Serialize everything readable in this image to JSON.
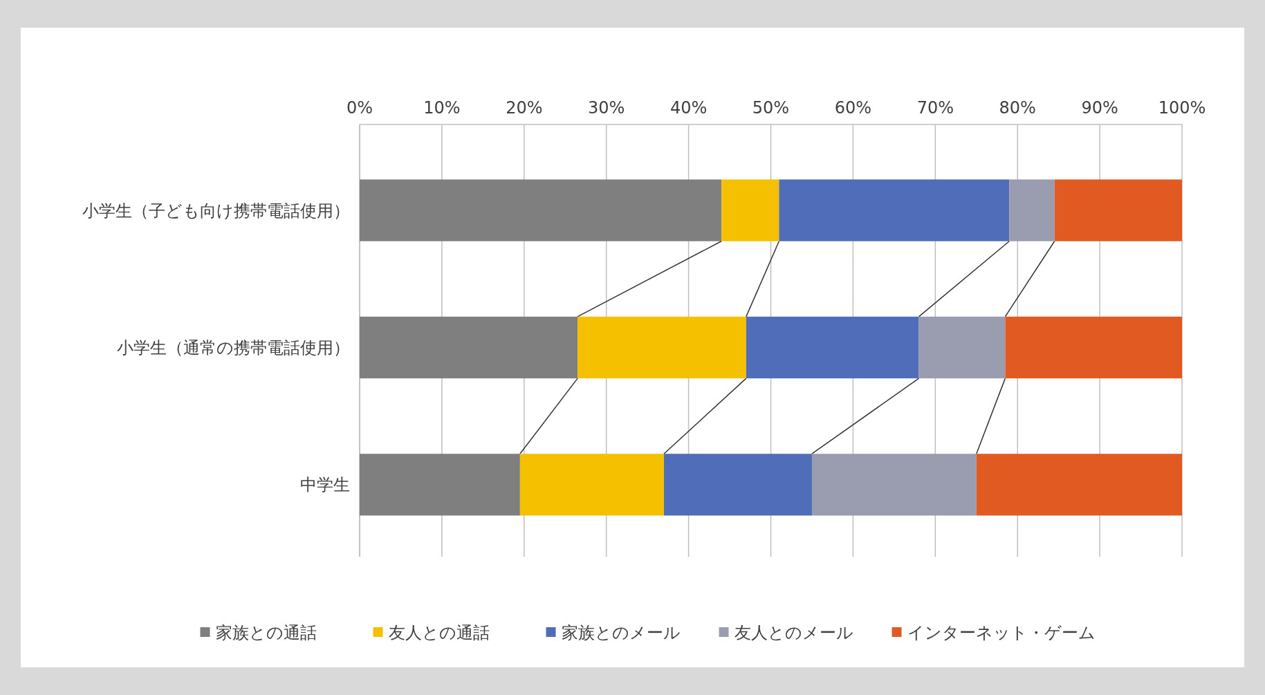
{
  "chart_data": {
    "type": "bar",
    "orientation": "horizontal",
    "stacked": true,
    "categories": [
      "小学生（子ども向け携帯電話使用）",
      "小学生（通常の携帯電話使用）",
      "中学生"
    ],
    "series": [
      {
        "name": "家族との通話",
        "color": "#7f7f7f",
        "values": [
          44,
          26.5,
          19.5
        ]
      },
      {
        "name": "友人との通話",
        "color": "#f5c000",
        "values": [
          7,
          20.5,
          17.5
        ]
      },
      {
        "name": "家族とのメール",
        "color": "#4f6db8",
        "values": [
          28,
          21,
          18
        ]
      },
      {
        "name": "友人とのメール",
        "color": "#9a9cb0",
        "values": [
          5.5,
          10.5,
          20
        ]
      },
      {
        "name": "インターネット・ゲーム",
        "color": "#e05a22",
        "values": [
          15.5,
          21.5,
          25
        ]
      }
    ],
    "xlim": [
      0,
      100
    ],
    "xticks": [
      {
        "value": 0,
        "label": "0%"
      },
      {
        "value": 10,
        "label": "10%"
      },
      {
        "value": 20,
        "label": "20%"
      },
      {
        "value": 30,
        "label": "30%"
      },
      {
        "value": 40,
        "label": "40%"
      },
      {
        "value": 50,
        "label": "50%"
      },
      {
        "value": 60,
        "label": "60%"
      },
      {
        "value": 70,
        "label": "70%"
      },
      {
        "value": 80,
        "label": "80%"
      },
      {
        "value": 90,
        "label": "90%"
      },
      {
        "value": 100,
        "label": "100%"
      }
    ],
    "grid": "x",
    "legend": "bottom"
  }
}
